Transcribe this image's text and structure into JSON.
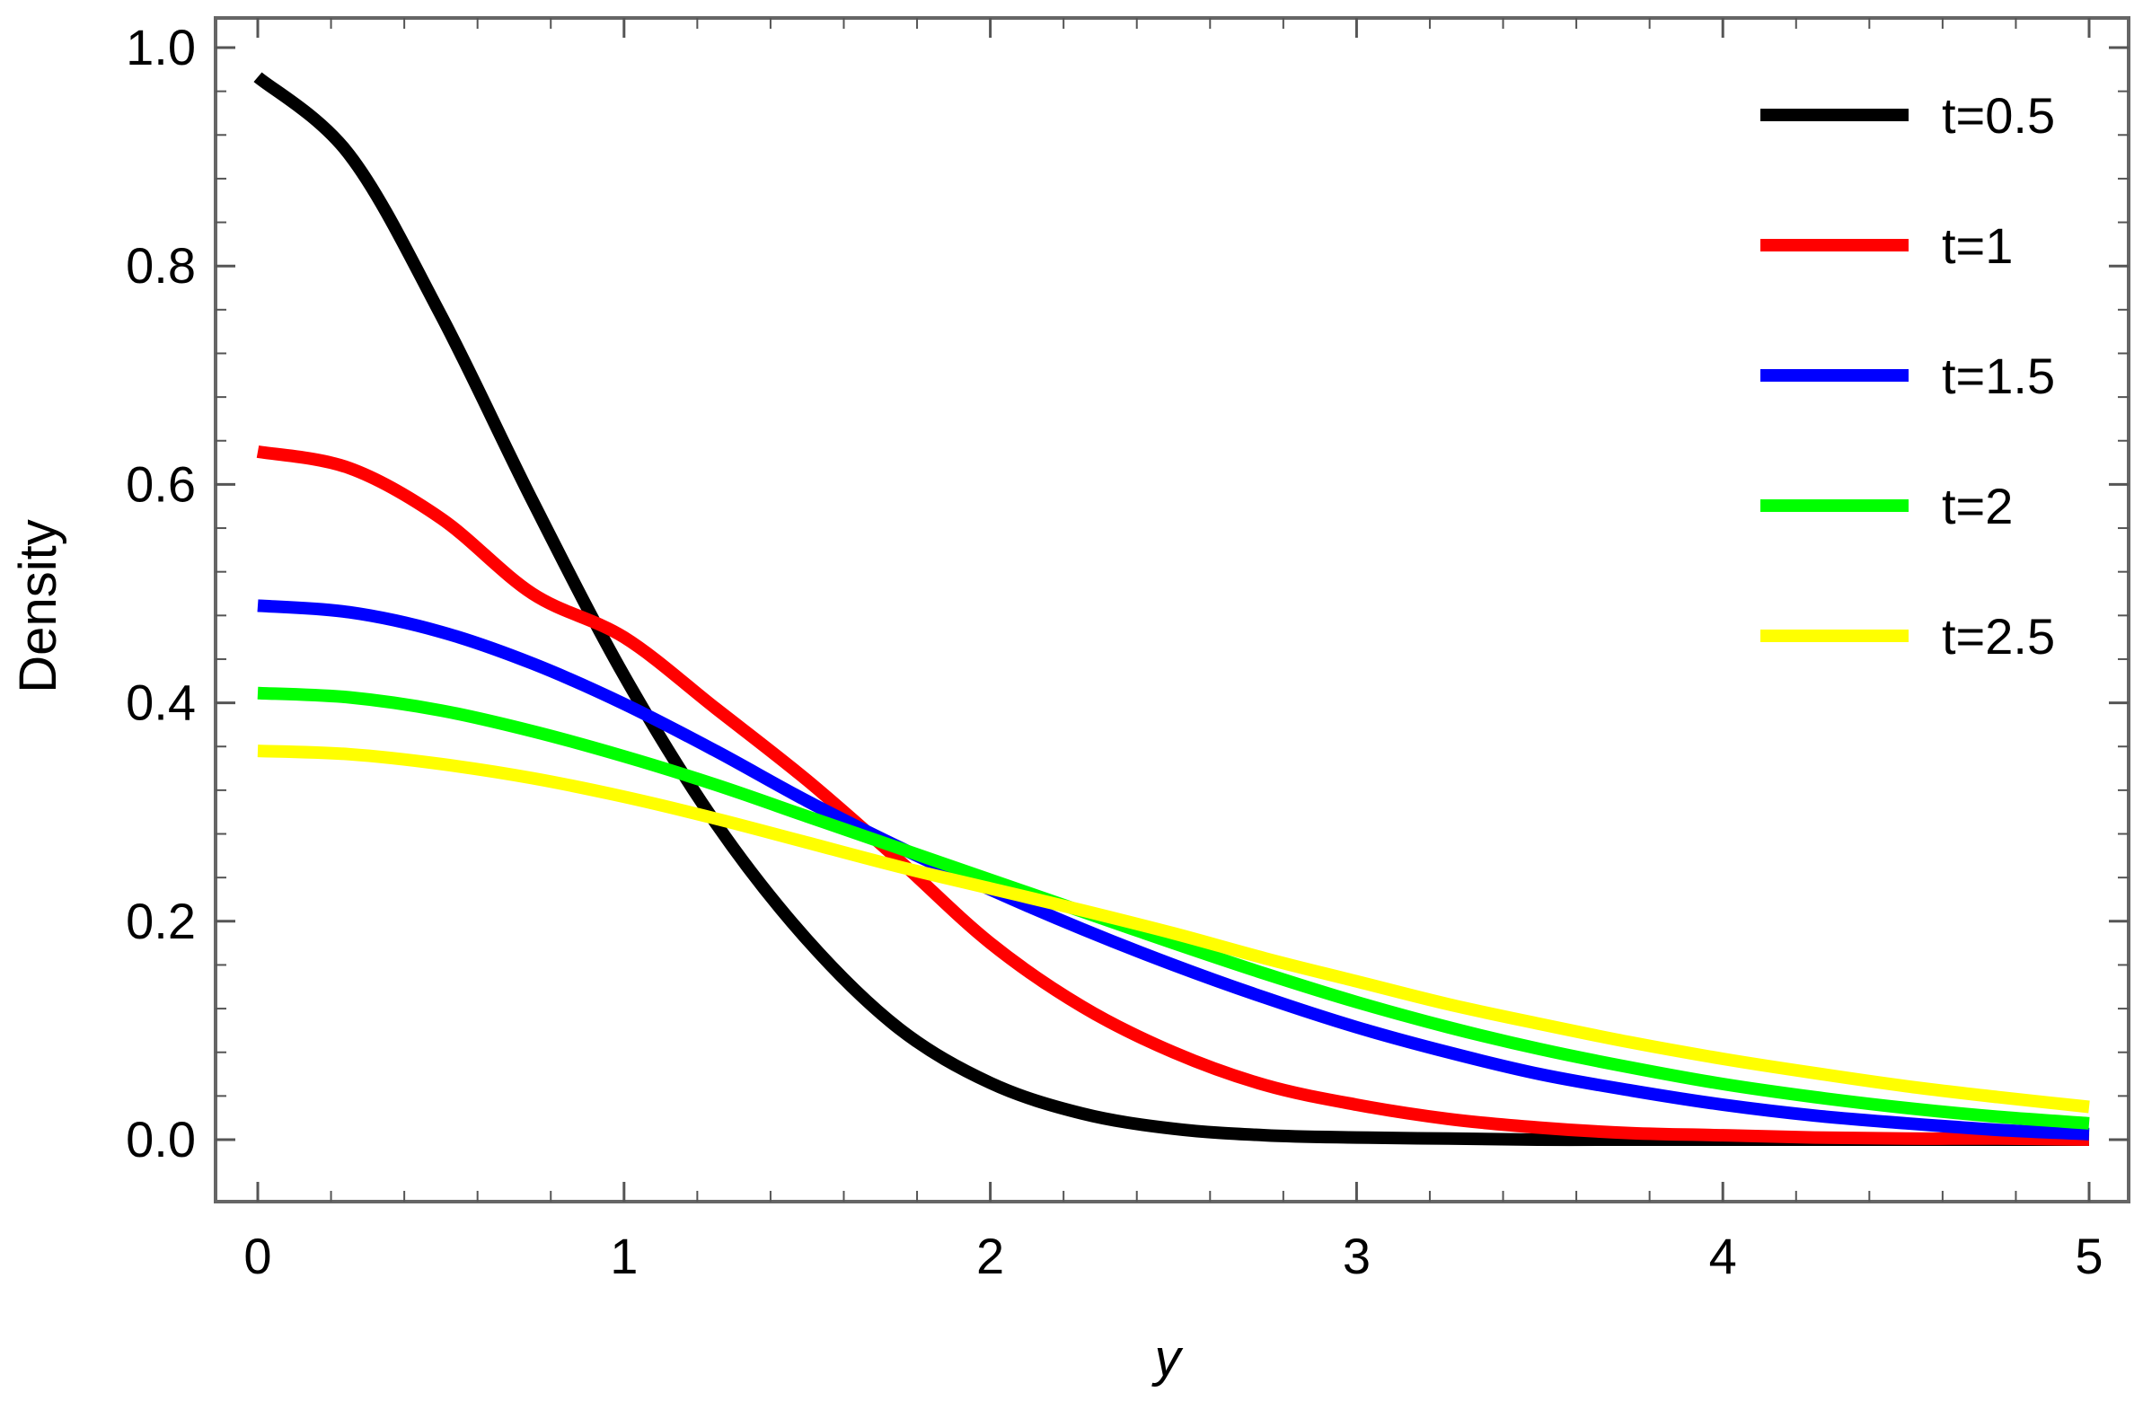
{
  "chart_data": {
    "type": "line",
    "title": "",
    "xlabel": "y",
    "ylabel": "Density",
    "xlim": [
      0,
      5
    ],
    "ylim": [
      -0.05,
      1.03
    ],
    "x_ticks": [
      {
        "value": 0,
        "label": "0"
      },
      {
        "value": 1,
        "label": "1"
      },
      {
        "value": 2,
        "label": "2"
      },
      {
        "value": 3,
        "label": "3"
      },
      {
        "value": 4,
        "label": "4"
      },
      {
        "value": 5,
        "label": "5"
      }
    ],
    "y_ticks": [
      {
        "value": 0.0,
        "label": "0.0"
      },
      {
        "value": 0.2,
        "label": "0.2"
      },
      {
        "value": 0.4,
        "label": "0.4"
      },
      {
        "value": 0.6,
        "label": "0.6"
      },
      {
        "value": 0.8,
        "label": "0.8"
      },
      {
        "value": 1.0,
        "label": "1.0"
      }
    ],
    "grid": false,
    "legend_position": "top-right",
    "x": [
      0,
      0.25,
      0.5,
      0.75,
      1,
      1.25,
      1.5,
      1.75,
      2,
      2.25,
      2.5,
      2.75,
      3,
      3.25,
      3.5,
      3.75,
      4,
      4.25,
      4.5,
      4.75,
      5
    ],
    "series": [
      {
        "name": "t=0.5",
        "color": "#000000",
        "values": [
          0.973,
          0.902,
          0.755,
          0.585,
          0.425,
          0.29,
          0.183,
          0.102,
          0.052,
          0.024,
          0.01,
          0.004,
          0.002,
          0.001,
          0.0,
          0.0,
          0.0,
          0.0,
          0.0,
          0.0,
          0.0
        ]
      },
      {
        "name": "t=1",
        "color": "#ff0000",
        "values": [
          0.63,
          0.615,
          0.569,
          0.5,
          0.46,
          0.395,
          0.329,
          0.256,
          0.18,
          0.122,
          0.08,
          0.05,
          0.032,
          0.019,
          0.011,
          0.006,
          0.004,
          0.002,
          0.001,
          0.001,
          0.0
        ]
      },
      {
        "name": "t=1.5",
        "color": "#0000ff",
        "values": [
          0.489,
          0.483,
          0.465,
          0.436,
          0.399,
          0.356,
          0.31,
          0.268,
          0.229,
          0.193,
          0.16,
          0.13,
          0.103,
          0.08,
          0.06,
          0.045,
          0.032,
          0.022,
          0.015,
          0.009,
          0.005
        ]
      },
      {
        "name": "t=2",
        "color": "#00ff00",
        "values": [
          0.409,
          0.405,
          0.393,
          0.374,
          0.351,
          0.325,
          0.296,
          0.267,
          0.238,
          0.209,
          0.18,
          0.152,
          0.126,
          0.103,
          0.083,
          0.066,
          0.051,
          0.039,
          0.029,
          0.021,
          0.015
        ]
      },
      {
        "name": "t=2.5",
        "color": "#ffff00",
        "values": [
          0.356,
          0.353,
          0.344,
          0.331,
          0.314,
          0.294,
          0.272,
          0.25,
          0.23,
          0.21,
          0.189,
          0.166,
          0.145,
          0.124,
          0.106,
          0.089,
          0.074,
          0.061,
          0.049,
          0.039,
          0.03
        ]
      }
    ]
  }
}
